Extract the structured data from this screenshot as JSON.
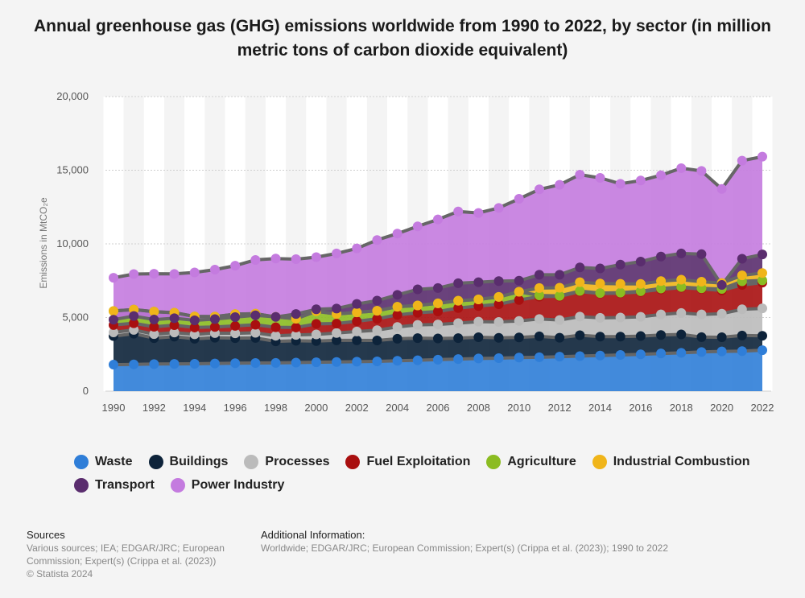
{
  "chart_data": {
    "type": "area",
    "title": "Annual greenhouse gas (GHG) emissions worldwide from 1990 to 2022, by sector (in million metric tons of carbon dioxide equivalent)",
    "ylabel": "Emissions in MtCO₂e",
    "ylim": [
      0,
      20000
    ],
    "yticks": [
      "0",
      "5,000",
      "10,000",
      "15,000",
      "20,000"
    ],
    "yticks_values": [
      0,
      5000,
      10000,
      15000,
      20000
    ],
    "xtick_labels": [
      "1990",
      "1992",
      "1994",
      "1996",
      "1998",
      "2000",
      "2002",
      "2004",
      "2006",
      "2008",
      "2010",
      "2012",
      "2014",
      "2016",
      "2018",
      "2020",
      "2022"
    ],
    "grid": true,
    "legend_position": "bottom",
    "stacked": true,
    "x": [
      1990,
      1991,
      1992,
      1993,
      1994,
      1995,
      1996,
      1997,
      1998,
      1999,
      2000,
      2001,
      2002,
      2003,
      2004,
      2005,
      2006,
      2007,
      2008,
      2009,
      2010,
      2011,
      2012,
      2013,
      2014,
      2015,
      2016,
      2017,
      2018,
      2019,
      2020,
      2021,
      2022
    ],
    "series": [
      {
        "name": "Waste",
        "color": "#2f7ed8",
        "values": [
          1800,
          1820,
          1840,
          1850,
          1860,
          1880,
          1900,
          1910,
          1920,
          1940,
          1960,
          1980,
          2000,
          2020,
          2060,
          2100,
          2140,
          2180,
          2220,
          2240,
          2280,
          2300,
          2340,
          2380,
          2420,
          2460,
          2500,
          2560,
          2600,
          2660,
          2700,
          2720,
          2780
        ]
      },
      {
        "name": "Buildings",
        "color": "#0d233a",
        "values": [
          1940,
          2080,
          1760,
          1850,
          1700,
          1750,
          1700,
          1700,
          1460,
          1480,
          1440,
          1470,
          1450,
          1420,
          1500,
          1500,
          1440,
          1420,
          1440,
          1380,
          1370,
          1420,
          1290,
          1420,
          1280,
          1240,
          1240,
          1250,
          1250,
          1010,
          960,
          1060,
          980
        ]
      },
      {
        "name": "Processes",
        "color": "#bbbbbb",
        "values": [
          250,
          260,
          270,
          280,
          300,
          310,
          330,
          350,
          380,
          400,
          450,
          500,
          600,
          700,
          800,
          900,
          950,
          1020,
          1060,
          1080,
          1120,
          1180,
          1200,
          1260,
          1280,
          1300,
          1310,
          1400,
          1460,
          1540,
          1600,
          1780,
          1860
        ]
      },
      {
        "name": "Fuel Exploitation",
        "color": "#a90f0f",
        "values": [
          500,
          450,
          500,
          500,
          460,
          420,
          500,
          550,
          580,
          500,
          720,
          640,
          700,
          770,
          820,
          820,
          880,
          1020,
          1060,
          1200,
          1420,
          1520,
          1600,
          1700,
          1650,
          1650,
          1690,
          1700,
          1720,
          1730,
          1580,
          1650,
          1750
        ]
      },
      {
        "name": "Agriculture",
        "color": "#8bbc21",
        "values": [
          950,
          930,
          1030,
          850,
          750,
          700,
          800,
          750,
          700,
          600,
          850,
          650,
          600,
          550,
          550,
          500,
          550,
          500,
          450,
          500,
          560,
          80,
          40,
          40,
          30,
          40,
          40,
          60,
          40,
          40,
          100,
          250,
          150
        ]
      },
      {
        "name": "Industrial Combustion",
        "color": "#f0b51a",
        "values": [
          0,
          0,
          0,
          0,
          0,
          0,
          0,
          0,
          0,
          0,
          0,
          0,
          0,
          0,
          0,
          0,
          0,
          0,
          0,
          0,
          0,
          500,
          550,
          600,
          650,
          600,
          500,
          500,
          500,
          450,
          400,
          400,
          500
        ]
      },
      {
        "name": "Transport",
        "color": "#5a2d6e",
        "values": [
          -590,
          -440,
          -540,
          -380,
          -260,
          -170,
          -200,
          -110,
          0,
          320,
          140,
          370,
          570,
          690,
          810,
          1090,
          1040,
          1190,
          1170,
          1070,
          750,
          900,
          880,
          1000,
          1020,
          1300,
          1520,
          1670,
          1780,
          1870,
          -130,
          1130,
          1260
        ]
      },
      {
        "name": "Power Industry",
        "color": "#c47bdf",
        "values": [
          2850,
          2850,
          3110,
          3010,
          3250,
          3360,
          3490,
          3760,
          3960,
          3720,
          3540,
          3740,
          3770,
          4110,
          4160,
          4280,
          4660,
          4870,
          4700,
          4970,
          5560,
          5800,
          6110,
          6300,
          6150,
          5490,
          5500,
          5520,
          5790,
          5650,
          6520,
          6660,
          6640
        ]
      }
    ]
  },
  "footer": {
    "sources_heading": "Sources",
    "sources_text": "Various sources; IEA; EDGAR/JRC; European Commission; Expert(s) (Crippa et al. (2023))",
    "copyright": "© Statista 2024",
    "addinfo_heading": "Additional Information:",
    "addinfo_text": "Worldwide; EDGAR/JRC; European Commission; Expert(s) (Crippa et al. (2023)); 1990 to 2022"
  }
}
